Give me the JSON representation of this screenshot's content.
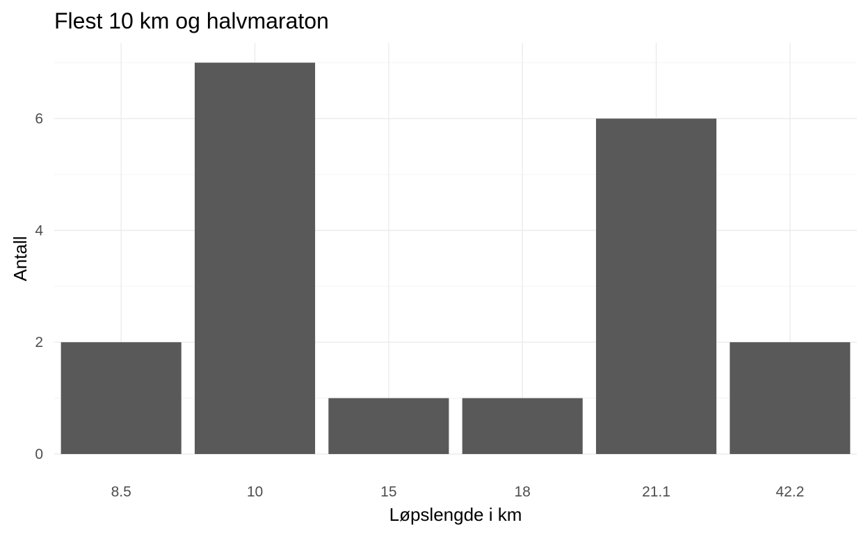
{
  "chart_data": {
    "type": "bar",
    "title": "Flest 10 km og halvmaraton",
    "xlabel": "Løpslengde i km",
    "ylabel": "Antall",
    "categories": [
      "8.5",
      "10",
      "15",
      "18",
      "21.1",
      "42.2"
    ],
    "values": [
      2,
      7,
      1,
      1,
      6,
      2
    ],
    "ylim": [
      0,
      7.35
    ],
    "yticks": [
      0,
      2,
      4,
      6
    ],
    "grid": true,
    "bar_color": "#595959",
    "grid_color": "#ebebeb"
  }
}
